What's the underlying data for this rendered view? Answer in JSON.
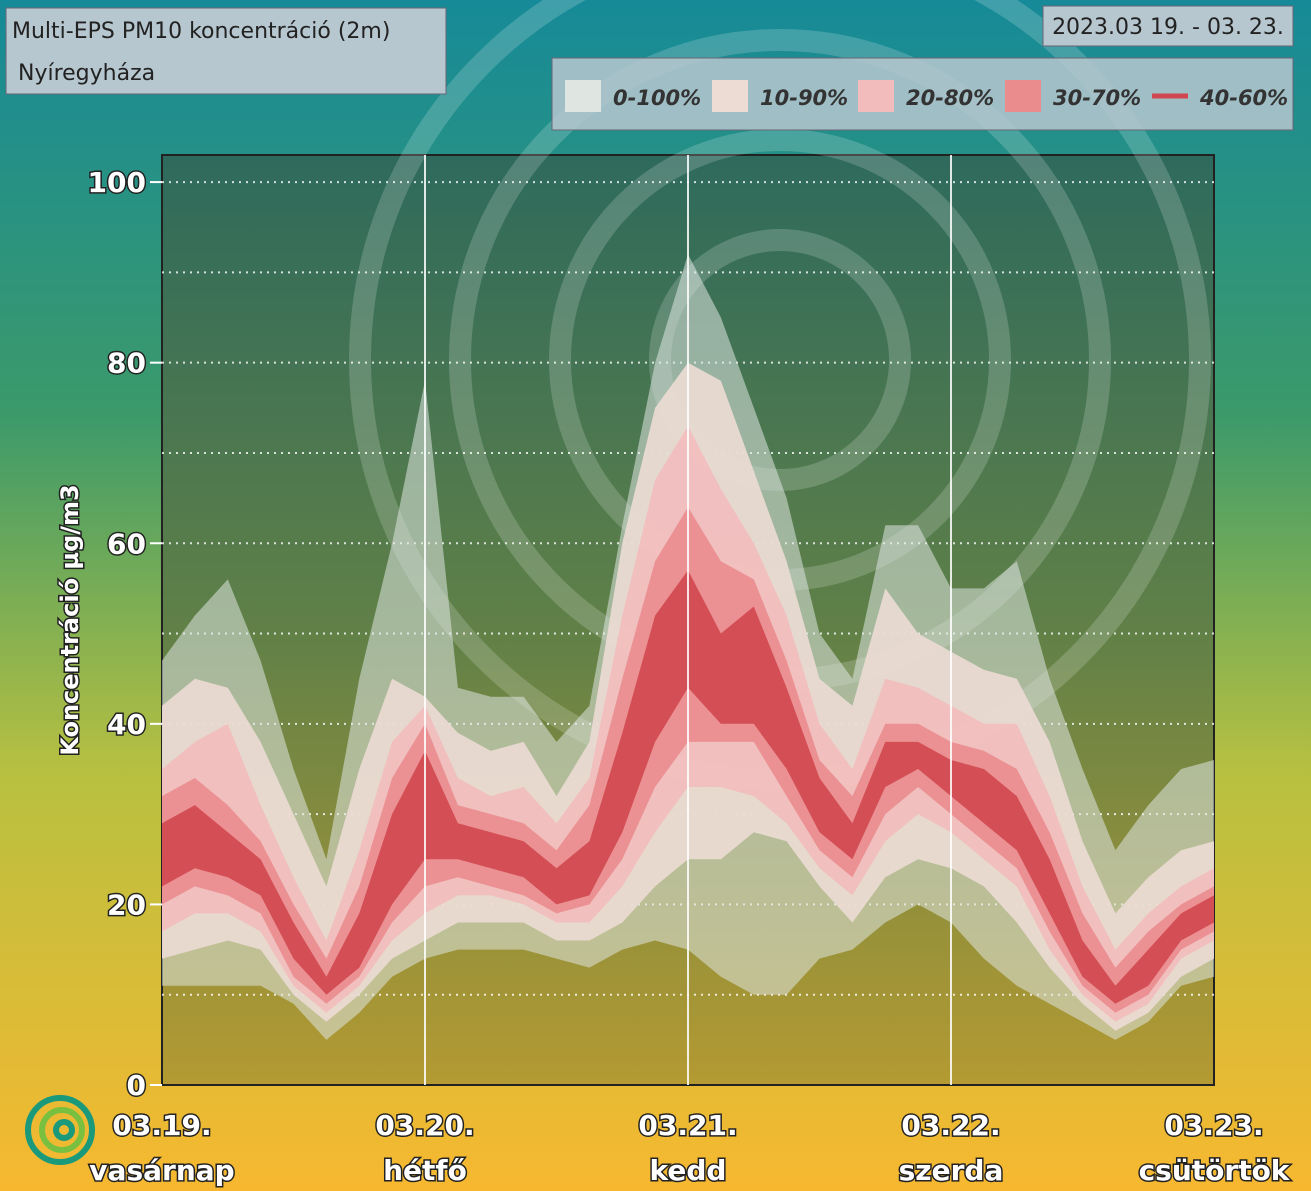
{
  "chart_data": {
    "type": "fan",
    "title": "Multi-EPS PM10 koncentráció (2m)",
    "subtitle": "Nyíregyháza",
    "date_range": "2023.03 19. - 03. 23.",
    "y_label": "Koncentráció µg/m3",
    "categories": [
      "03.19.",
      null,
      null,
      null,
      null,
      null,
      null,
      null,
      "03.20.",
      null,
      null,
      null,
      null,
      null,
      null,
      null,
      "03.21.",
      null,
      null,
      null,
      null,
      null,
      null,
      null,
      "03.22.",
      null,
      null,
      null,
      null,
      null,
      null,
      null,
      "03.23."
    ],
    "weekdays": [
      "vasárnap",
      null,
      null,
      null,
      null,
      null,
      null,
      null,
      "hétfő",
      null,
      null,
      null,
      null,
      null,
      null,
      null,
      "kedd",
      null,
      null,
      null,
      null,
      null,
      null,
      null,
      "szerda",
      null,
      null,
      null,
      null,
      null,
      null,
      null,
      "csütörtök"
    ],
    "ylim": [
      0,
      103
    ],
    "yticks": [
      0,
      20,
      40,
      60,
      80,
      100
    ],
    "minor_grid": [
      10,
      30,
      50,
      70,
      90
    ],
    "grid": true,
    "series": [
      {
        "name": "0-100%",
        "color": "#dfe6e2",
        "low": [
          11,
          11,
          11,
          11,
          9,
          5,
          8,
          12,
          14,
          15,
          15,
          15,
          14,
          13,
          15,
          16,
          15,
          12,
          10,
          10,
          14,
          15,
          18,
          20,
          18,
          14,
          11,
          9,
          7,
          5,
          7,
          11,
          12
        ],
        "high": [
          47,
          52,
          56,
          47,
          35,
          25,
          45,
          60,
          78,
          44,
          43,
          43,
          38,
          42,
          62,
          80,
          92,
          85,
          75,
          65,
          50,
          45,
          62,
          62,
          55,
          55,
          58,
          45,
          35,
          26,
          31,
          35,
          36
        ]
      },
      {
        "name": "10-90%",
        "color": "#ecdcd4",
        "low": [
          14,
          15,
          16,
          15,
          10,
          7,
          10,
          14,
          16,
          18,
          18,
          18,
          16,
          16,
          18,
          22,
          25,
          25,
          28,
          27,
          22,
          18,
          23,
          25,
          24,
          22,
          18,
          13,
          9,
          6,
          8,
          12,
          14
        ],
        "high": [
          42,
          45,
          44,
          38,
          30,
          22,
          35,
          45,
          43,
          39,
          37,
          38,
          32,
          38,
          60,
          75,
          80,
          78,
          68,
          58,
          45,
          42,
          55,
          50,
          48,
          46,
          45,
          38,
          27,
          19,
          23,
          26,
          27
        ]
      },
      {
        "name": "20-80%",
        "color": "#f2bcbc",
        "low": [
          17,
          19,
          19,
          17,
          11,
          8,
          11,
          16,
          19,
          21,
          21,
          20,
          18,
          18,
          22,
          28,
          33,
          33,
          32,
          29,
          24,
          21,
          27,
          30,
          28,
          25,
          22,
          15,
          10,
          7,
          9,
          14,
          16
        ],
        "high": [
          35,
          38,
          40,
          31,
          23,
          16,
          26,
          38,
          42,
          34,
          32,
          33,
          29,
          34,
          52,
          67,
          73,
          66,
          60,
          52,
          40,
          35,
          45,
          44,
          42,
          40,
          40,
          32,
          22,
          15,
          19,
          22,
          24
        ]
      },
      {
        "name": "30-70%",
        "color": "#ea8c8e",
        "low": [
          20,
          22,
          21,
          19,
          12,
          9,
          12,
          18,
          22,
          23,
          22,
          21,
          19,
          20,
          25,
          33,
          38,
          38,
          38,
          32,
          26,
          23,
          30,
          33,
          30,
          27,
          24,
          17,
          11,
          8,
          10,
          15,
          17
        ],
        "high": [
          32,
          34,
          31,
          27,
          20,
          14,
          22,
          34,
          40,
          31,
          30,
          29,
          26,
          31,
          45,
          58,
          64,
          58,
          56,
          47,
          36,
          32,
          40,
          40,
          38,
          37,
          35,
          28,
          19,
          13,
          17,
          20,
          22
        ]
      },
      {
        "name": "40-60%",
        "color": "#d2474f",
        "low": [
          22,
          24,
          23,
          21,
          14,
          10,
          13,
          20,
          25,
          25,
          24,
          23,
          20,
          21,
          28,
          38,
          44,
          40,
          40,
          35,
          28,
          25,
          33,
          35,
          32,
          29,
          26,
          19,
          12,
          9,
          11,
          16,
          18
        ],
        "high": [
          29,
          31,
          28,
          25,
          18,
          12,
          19,
          30,
          37,
          29,
          28,
          27,
          24,
          27,
          39,
          52,
          57,
          50,
          53,
          44,
          34,
          29,
          38,
          38,
          36,
          35,
          32,
          25,
          16,
          11,
          15,
          19,
          21
        ]
      }
    ]
  }
}
